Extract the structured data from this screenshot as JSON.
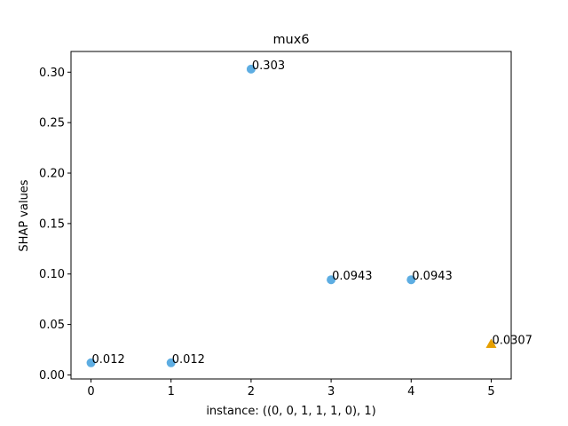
{
  "chart_data": {
    "type": "scatter",
    "title": "mux6",
    "xlabel": "instance: ((0, 0, 1, 1, 1, 0), 1)",
    "ylabel": "SHAP values",
    "xlim": [
      -0.25,
      5.25
    ],
    "ylim": [
      -0.004,
      0.3205
    ],
    "x_ticks": [
      0,
      1,
      2,
      3,
      4,
      5
    ],
    "x_tick_labels": [
      "0",
      "1",
      "2",
      "3",
      "4",
      "5"
    ],
    "y_ticks": [
      0.0,
      0.05,
      0.1,
      0.15,
      0.2,
      0.25,
      0.3
    ],
    "y_tick_labels": [
      "0.00",
      "0.05",
      "0.10",
      "0.15",
      "0.20",
      "0.25",
      "0.30"
    ],
    "grid": false,
    "points": [
      {
        "x": 0,
        "y": 0.012,
        "label": "0.012",
        "marker": "circle",
        "color": "#5DADE2"
      },
      {
        "x": 1,
        "y": 0.012,
        "label": "0.012",
        "marker": "circle",
        "color": "#5DADE2"
      },
      {
        "x": 2,
        "y": 0.303,
        "label": "0.303",
        "marker": "circle",
        "color": "#5DADE2"
      },
      {
        "x": 3,
        "y": 0.0943,
        "label": "0.0943",
        "marker": "circle",
        "color": "#5DADE2"
      },
      {
        "x": 4,
        "y": 0.0943,
        "label": "0.0943",
        "marker": "circle",
        "color": "#5DADE2"
      },
      {
        "x": 5,
        "y": 0.0307,
        "label": "0.0307",
        "marker": "triangle",
        "color": "#E69F00"
      }
    ]
  }
}
